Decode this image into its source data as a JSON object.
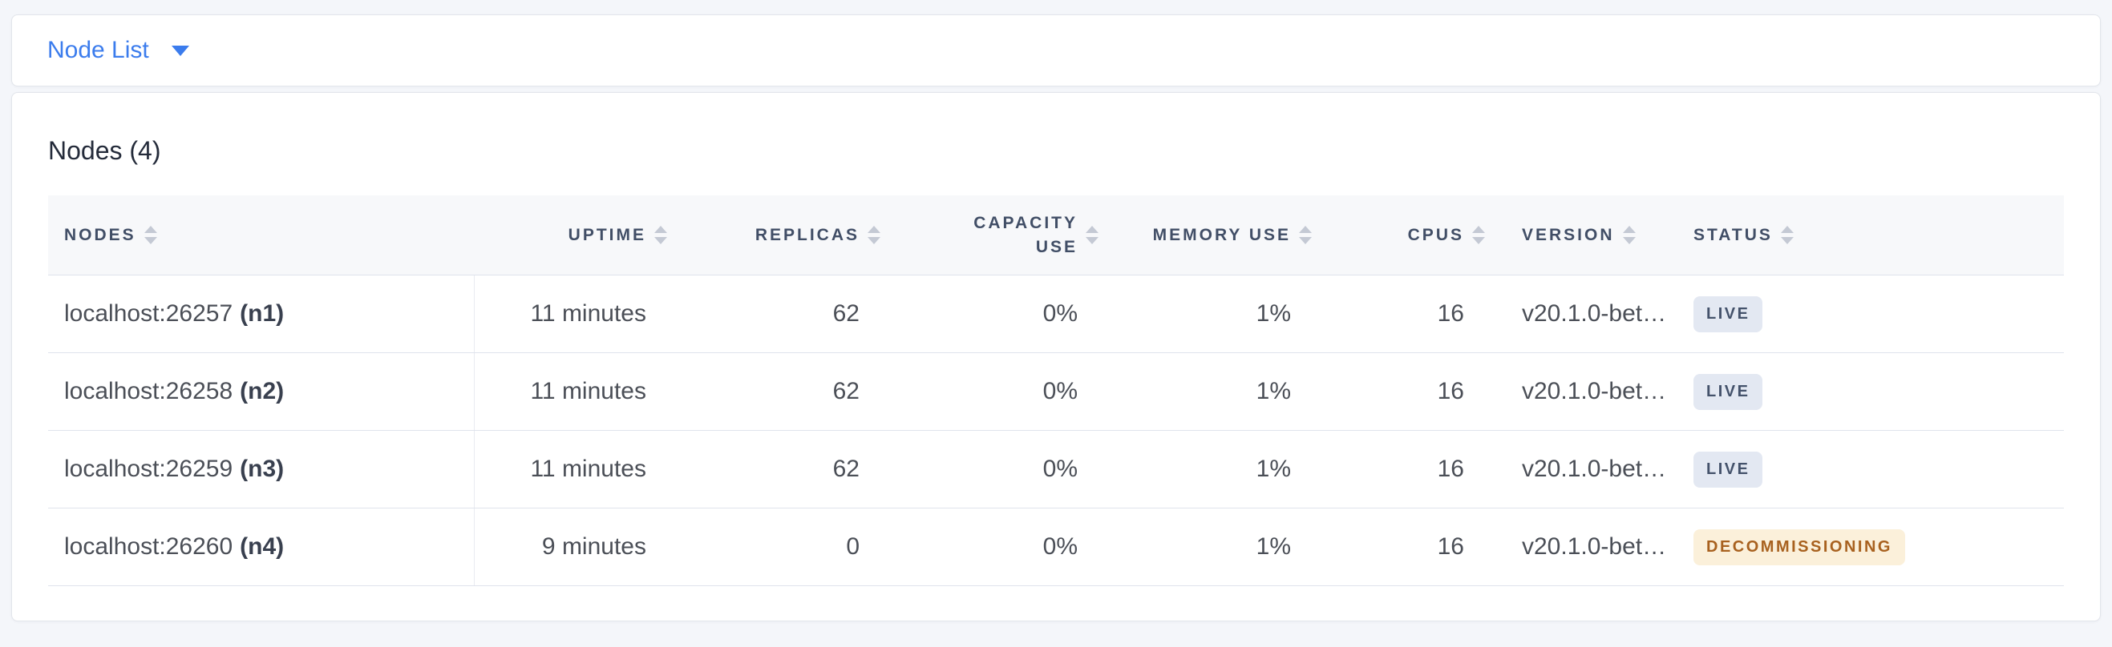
{
  "colors": {
    "page_bg": "#f4f6fa",
    "card_bg": "#ffffff",
    "card_border": "#e2e5eb",
    "accent": "#3b7ced",
    "title_text": "#242b3a",
    "header_text": "#414e66",
    "header_bg": "#f7f8fa",
    "row_border": "#dfe3ec",
    "col_divider": "#e9ebf1",
    "cell_text": "#4b4f57",
    "sort_arrow": "#c4c9d4",
    "live_bg": "#e3e8f2",
    "live_text": "#44526b",
    "decommissioning_bg": "#fbf0da",
    "decommissioning_text": "#a8611f"
  },
  "toolbar": {
    "view_selector": "Node List"
  },
  "panel": {
    "title": "Nodes (4)",
    "table": {
      "headers": [
        {
          "label": "NODES"
        },
        {
          "label": "UPTIME"
        },
        {
          "label": "REPLICAS"
        },
        {
          "label": "CAPACITY USE"
        },
        {
          "label": "MEMORY USE"
        },
        {
          "label": "CPUS"
        },
        {
          "label": "VERSION"
        },
        {
          "label": "STATUS"
        }
      ],
      "rows": [
        {
          "address": "localhost:26257",
          "node_id": "(n1)",
          "uptime": "11 minutes",
          "replicas": "62",
          "capacity_use": "0%",
          "memory_use": "1%",
          "cpus": "16",
          "version": "v20.1.0-bet…",
          "status": "LIVE",
          "status_type": "live"
        },
        {
          "address": "localhost:26258",
          "node_id": "(n2)",
          "uptime": "11 minutes",
          "replicas": "62",
          "capacity_use": "0%",
          "memory_use": "1%",
          "cpus": "16",
          "version": "v20.1.0-bet…",
          "status": "LIVE",
          "status_type": "live"
        },
        {
          "address": "localhost:26259",
          "node_id": "(n3)",
          "uptime": "11 minutes",
          "replicas": "62",
          "capacity_use": "0%",
          "memory_use": "1%",
          "cpus": "16",
          "version": "v20.1.0-bet…",
          "status": "LIVE",
          "status_type": "live"
        },
        {
          "address": "localhost:26260",
          "node_id": "(n4)",
          "uptime": "9 minutes",
          "replicas": "0",
          "capacity_use": "0%",
          "memory_use": "1%",
          "cpus": "16",
          "version": "v20.1.0-bet…",
          "status": "DECOMMISSIONING",
          "status_type": "decommissioning"
        }
      ]
    }
  }
}
